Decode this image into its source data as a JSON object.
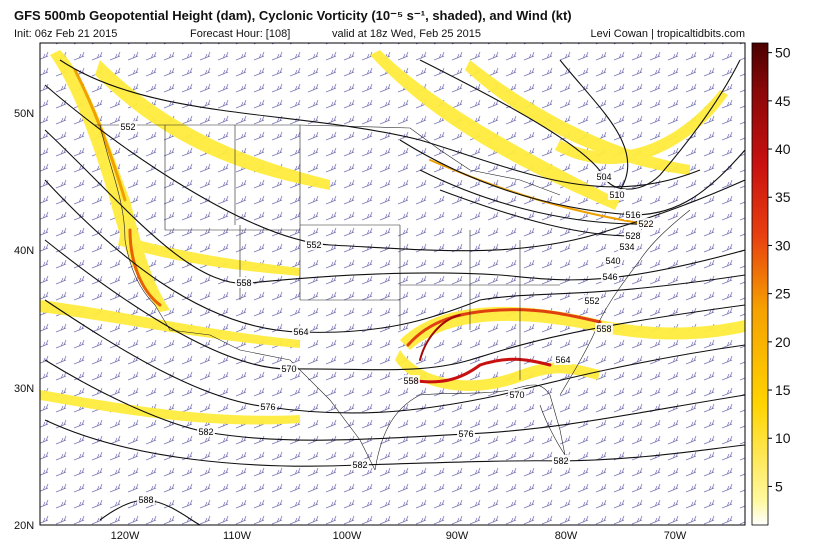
{
  "header": {
    "title": "GFS 500mb Geopotential Height (dam), Cyclonic Vorticity (10⁻⁵ s⁻¹, shaded), and Wind (kt)",
    "init": "Init: 06z Feb 21 2015",
    "forecast_hour": "Forecast Hour: [108]",
    "valid": "valid at 18z Wed, Feb 25 2015",
    "credit": "Levi Cowan | tropicaltidbits.com"
  },
  "map": {
    "lat_labels": [
      "50N",
      "40N",
      "30N",
      "20N"
    ],
    "lon_labels": [
      "120W",
      "110W",
      "100W",
      "90W",
      "80W",
      "70W"
    ],
    "contour_labels": [
      552,
      552,
      558,
      564,
      570,
      576,
      582,
      582,
      588,
      504,
      510,
      516,
      522,
      528,
      534,
      540,
      546,
      552,
      558,
      564,
      558,
      570,
      576,
      582
    ]
  },
  "colorbar": {
    "lim": [
      1,
      51
    ],
    "ticks": [
      5,
      10,
      15,
      20,
      25,
      30,
      35,
      40,
      45,
      50
    ]
  }
}
